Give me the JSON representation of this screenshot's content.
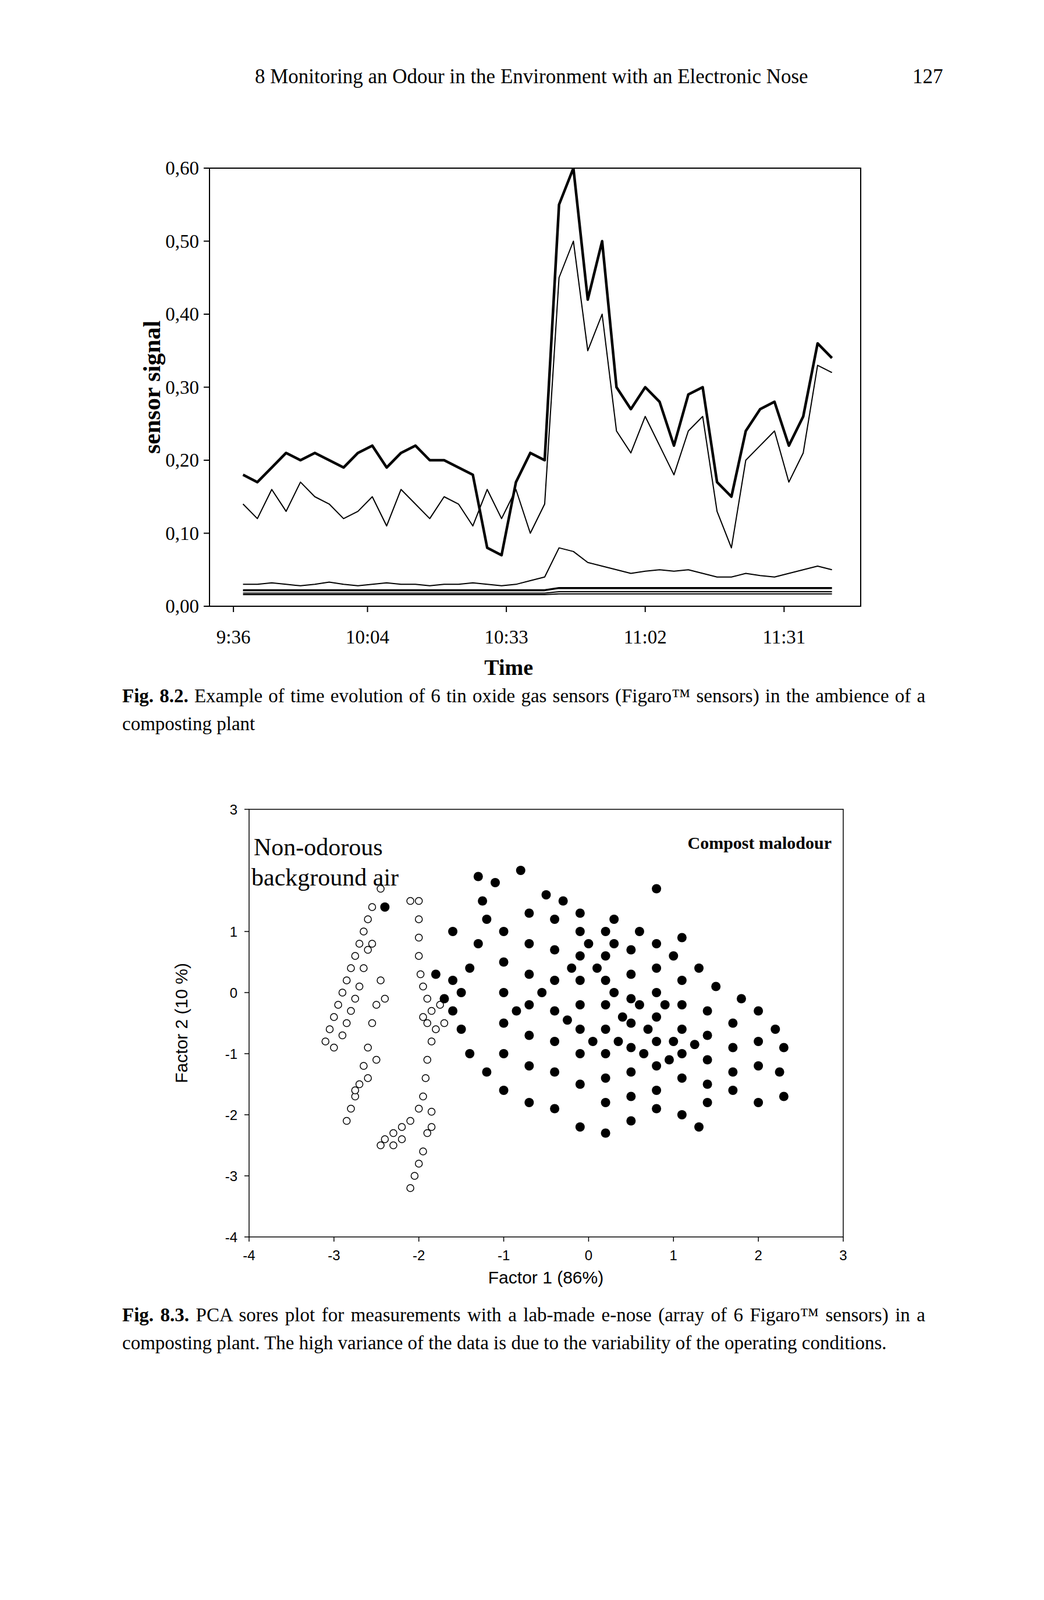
{
  "page": {
    "header": "8 Monitoring an Odour in the Environment with an Electronic Nose",
    "page_number": "127"
  },
  "captions": [
    {
      "label": "Fig. 8.2.",
      "text": "Example of time evolution of 6 tin oxide gas sensors (Figaro™ sensors) in the ambience of a composting plant"
    },
    {
      "label": "Fig. 8.3.",
      "text": "PCA sores plot for measurements with a lab-made e-nose (array of 6 Figaro™ sensors) in a composting plant. The high variance of the data is due to the variability of the operating conditions."
    }
  ],
  "chart_data": [
    {
      "type": "line",
      "x_label": "Time",
      "y_label": "sensor signal",
      "color": "#000000",
      "x": [
        578,
        581,
        584,
        587,
        590,
        593,
        596,
        599,
        602,
        605,
        608,
        611,
        614,
        617,
        620,
        623,
        626,
        629,
        632,
        635,
        638,
        641,
        644,
        647,
        650,
        653,
        656,
        659,
        662,
        665,
        668,
        671,
        674,
        677,
        680,
        683,
        686,
        689,
        692,
        695,
        698,
        701
      ],
      "series": [
        {
          "values": [
            0.18,
            0.17,
            0.19,
            0.21,
            0.2,
            0.21,
            0.2,
            0.19,
            0.21,
            0.22,
            0.19,
            0.21,
            0.22,
            0.2,
            0.2,
            0.19,
            0.18,
            0.08,
            0.07,
            0.17,
            0.21,
            0.2,
            0.55,
            0.6,
            0.42,
            0.5,
            0.3,
            0.27,
            0.3,
            0.28,
            0.22,
            0.29,
            0.3,
            0.17,
            0.15,
            0.24,
            0.27,
            0.28,
            0.22,
            0.26,
            0.36,
            0.34
          ]
        },
        {
          "values": [
            0.14,
            0.12,
            0.16,
            0.13,
            0.17,
            0.15,
            0.14,
            0.12,
            0.13,
            0.15,
            0.11,
            0.16,
            0.14,
            0.12,
            0.15,
            0.14,
            0.11,
            0.16,
            0.12,
            0.16,
            0.1,
            0.14,
            0.45,
            0.5,
            0.35,
            0.4,
            0.24,
            0.21,
            0.26,
            0.22,
            0.18,
            0.24,
            0.26,
            0.13,
            0.08,
            0.2,
            0.22,
            0.24,
            0.17,
            0.21,
            0.33,
            0.32
          ]
        },
        {
          "values": [
            0.03,
            0.03,
            0.032,
            0.03,
            0.028,
            0.03,
            0.033,
            0.03,
            0.028,
            0.03,
            0.032,
            0.03,
            0.03,
            0.028,
            0.03,
            0.03,
            0.032,
            0.03,
            0.028,
            0.03,
            0.035,
            0.04,
            0.08,
            0.075,
            0.06,
            0.055,
            0.05,
            0.045,
            0.048,
            0.05,
            0.048,
            0.05,
            0.045,
            0.04,
            0.04,
            0.045,
            0.042,
            0.04,
            0.045,
            0.05,
            0.055,
            0.05
          ]
        },
        {
          "values": [
            0.022,
            0.022,
            0.022,
            0.022,
            0.022,
            0.022,
            0.022,
            0.022,
            0.022,
            0.022,
            0.022,
            0.022,
            0.022,
            0.022,
            0.022,
            0.022,
            0.022,
            0.022,
            0.022,
            0.022,
            0.022,
            0.022,
            0.025,
            0.025,
            0.025,
            0.025,
            0.025,
            0.025,
            0.025,
            0.025,
            0.025,
            0.025,
            0.025,
            0.025,
            0.025,
            0.025,
            0.025,
            0.025,
            0.025,
            0.025,
            0.025,
            0.025
          ]
        },
        {
          "values": [
            0.018,
            0.018,
            0.018,
            0.018,
            0.018,
            0.018,
            0.018,
            0.018,
            0.018,
            0.018,
            0.018,
            0.018,
            0.018,
            0.018,
            0.018,
            0.018,
            0.018,
            0.018,
            0.018,
            0.018,
            0.018,
            0.018,
            0.02,
            0.02,
            0.02,
            0.02,
            0.02,
            0.02,
            0.02,
            0.02,
            0.02,
            0.02,
            0.02,
            0.02,
            0.02,
            0.02,
            0.02,
            0.02,
            0.02,
            0.02,
            0.02,
            0.02
          ]
        },
        {
          "values": [
            0.016,
            0.016,
            0.016,
            0.016,
            0.016,
            0.016,
            0.016,
            0.016,
            0.016,
            0.016,
            0.016,
            0.016,
            0.016,
            0.016,
            0.016,
            0.016,
            0.016,
            0.016,
            0.016,
            0.016,
            0.016,
            0.016,
            0.017,
            0.017,
            0.017,
            0.017,
            0.017,
            0.017,
            0.017,
            0.017,
            0.017,
            0.017,
            0.017,
            0.017,
            0.017,
            0.017,
            0.017,
            0.017,
            0.017,
            0.017,
            0.017,
            0.017
          ]
        }
      ],
      "xlim": [
        571,
        707
      ],
      "xticks": [
        {
          "value": 576,
          "label": "9:36"
        },
        {
          "value": 604,
          "label": "10:04"
        },
        {
          "value": 633,
          "label": "10:33"
        },
        {
          "value": 662,
          "label": "11:02"
        },
        {
          "value": 691,
          "label": "11:31"
        }
      ],
      "ylim": [
        0,
        0.6
      ],
      "yticks": [
        {
          "value": 0,
          "label": "0,00"
        },
        {
          "value": 0.1,
          "label": "0,10"
        },
        {
          "value": 0.2,
          "label": "0,20"
        },
        {
          "value": 0.3,
          "label": "0,30"
        },
        {
          "value": 0.4,
          "label": "0,40"
        },
        {
          "value": 0.5,
          "label": "0,50"
        },
        {
          "value": 0.6,
          "label": "0,60"
        }
      ]
    },
    {
      "type": "scatter",
      "x_label": "Factor 1 (86%)",
      "y_label": "Factor 2 (10 %)",
      "color": "#000000",
      "annotations": [
        "Non-odorous background air",
        "Compost malodour"
      ],
      "series": [
        {
          "marker": "open",
          "x": [
            -3.1,
            -3.05,
            -3.0,
            -2.95,
            -2.9,
            -2.85,
            -2.8,
            -2.75,
            -2.7,
            -2.65,
            -2.6,
            -2.55,
            -2.9,
            -2.85,
            -2.8,
            -2.75,
            -2.7,
            -2.65,
            -2.6,
            -3.0,
            -2.6,
            -2.65,
            -2.7,
            -2.75,
            -2.8,
            -2.85,
            -2.75,
            -2.6,
            -2.5,
            -2.55,
            -2.5,
            -2.45,
            -2.55,
            -2.4,
            -2.0,
            -2.0,
            -2.0,
            -2.0,
            -1.98,
            -1.95,
            -1.9,
            -1.85,
            -1.9,
            -1.8,
            -1.95,
            -1.75,
            -1.7,
            -1.85,
            -1.9,
            -1.92,
            -1.95,
            -2.0,
            -2.1,
            -2.2,
            -2.3,
            -2.4,
            -2.45,
            -2.3,
            -2.2,
            -1.85,
            -1.9,
            -1.95,
            -2.0,
            -2.05,
            -2.1,
            -1.85,
            -2.1,
            -2.45
          ],
          "y": [
            -0.8,
            -0.6,
            -0.4,
            -0.2,
            0.0,
            0.2,
            0.4,
            0.6,
            0.8,
            1.0,
            1.2,
            1.4,
            -0.7,
            -0.5,
            -0.3,
            -0.1,
            0.1,
            0.4,
            0.7,
            -0.9,
            -0.9,
            -1.2,
            -1.5,
            -1.7,
            -1.9,
            -2.1,
            -1.6,
            -1.4,
            -1.1,
            -0.5,
            -0.2,
            0.2,
            0.8,
            -0.1,
            1.5,
            1.2,
            0.9,
            0.6,
            0.3,
            0.1,
            -0.1,
            -0.3,
            -0.5,
            -0.6,
            -0.4,
            -0.2,
            -0.5,
            -0.8,
            -1.1,
            -1.4,
            -1.7,
            -1.9,
            -2.1,
            -2.2,
            -2.3,
            -2.4,
            -2.5,
            -2.5,
            -2.4,
            -1.95,
            -2.3,
            -2.6,
            -2.8,
            -3.0,
            -3.2,
            -2.2,
            1.5,
            1.7
          ]
        },
        {
          "marker": "filled",
          "x": [
            -1.3,
            -1.1,
            -0.8,
            -0.5,
            -0.3,
            -0.1,
            0.3,
            0.6,
            0.8,
            1.0,
            1.3,
            1.5,
            1.8,
            2.0,
            2.2,
            2.3,
            2.25,
            2.3,
            2.0,
            1.7,
            1.4,
            1.1,
            0.8,
            0.5,
            0.2,
            -0.1,
            -0.4,
            -0.7,
            -1.0,
            -1.2,
            -1.4,
            -1.5,
            -1.6,
            -1.5,
            -1.4,
            -1.3,
            -1.2,
            -1.25,
            -1.6,
            -1.7,
            0.8,
            1.1,
            1.3,
            -1.8,
            -2.4,
            -1.6,
            -1.0,
            -1.0,
            -1.0,
            -1.0,
            -1.0,
            -0.7,
            -0.7,
            -0.7,
            -0.7,
            -0.7,
            -0.7,
            -0.4,
            -0.4,
            -0.4,
            -0.4,
            -0.4,
            -0.4,
            -0.1,
            -0.1,
            -0.1,
            -0.1,
            -0.1,
            -0.1,
            -0.1,
            0.2,
            0.2,
            0.2,
            0.2,
            0.2,
            0.2,
            0.2,
            0.2,
            0.5,
            0.5,
            0.5,
            0.5,
            0.5,
            0.5,
            0.5,
            0.8,
            0.8,
            0.8,
            0.8,
            0.8,
            0.8,
            1.1,
            1.1,
            1.1,
            1.1,
            1.1,
            1.4,
            1.4,
            1.4,
            1.4,
            1.7,
            1.7,
            1.7,
            2.0,
            2.0,
            0.0,
            0.1,
            0.3,
            0.4,
            0.6,
            0.7,
            0.9,
            1.0,
            0.3,
            -0.2,
            0.35,
            0.65,
            -0.55,
            -0.25,
            0.95,
            1.25,
            0.05,
            -0.85
          ],
          "y": [
            1.9,
            1.8,
            2.0,
            1.6,
            1.5,
            1.3,
            1.2,
            1.0,
            0.8,
            0.6,
            0.4,
            0.1,
            -0.1,
            -0.3,
            -0.6,
            -0.9,
            -1.3,
            -1.7,
            -1.8,
            -1.6,
            -1.8,
            -2.0,
            -1.9,
            -2.1,
            -2.3,
            -2.2,
            -1.9,
            -1.8,
            -1.6,
            -1.3,
            -1.0,
            -0.6,
            -0.3,
            0.0,
            0.4,
            0.8,
            1.2,
            1.5,
            0.2,
            -0.1,
            1.7,
            0.9,
            -2.2,
            0.3,
            1.4,
            1.0,
            1.0,
            0.5,
            0.0,
            -0.5,
            -1.0,
            1.3,
            0.8,
            0.3,
            -0.2,
            -0.7,
            -1.2,
            1.2,
            0.7,
            0.2,
            -0.3,
            -0.8,
            -1.3,
            1.0,
            0.6,
            0.2,
            -0.2,
            -0.6,
            -1.0,
            -1.5,
            1.0,
            0.6,
            0.2,
            -0.2,
            -0.6,
            -1.0,
            -1.4,
            -1.8,
            0.7,
            0.3,
            -0.1,
            -0.5,
            -0.9,
            -1.3,
            -1.7,
            0.4,
            0.0,
            -0.4,
            -0.8,
            -1.2,
            -1.6,
            0.2,
            -0.2,
            -0.6,
            -1.0,
            -1.4,
            -0.3,
            -0.7,
            -1.1,
            -1.5,
            -0.5,
            -0.9,
            -1.3,
            -0.8,
            -1.2,
            0.8,
            0.4,
            0.0,
            -0.4,
            -0.2,
            -0.6,
            -0.2,
            -0.8,
            0.8,
            0.4,
            -0.8,
            -1.0,
            0.0,
            -0.45,
            -1.1,
            -0.85,
            -0.8,
            -0.3
          ]
        }
      ],
      "xlim": [
        -4,
        3
      ],
      "xticks": [
        -4,
        -3,
        -2,
        -1,
        0,
        1,
        2,
        3
      ],
      "ylim": [
        -4,
        3
      ],
      "yticks": [
        -4,
        -3,
        -2,
        -1,
        0,
        1,
        3
      ]
    }
  ]
}
